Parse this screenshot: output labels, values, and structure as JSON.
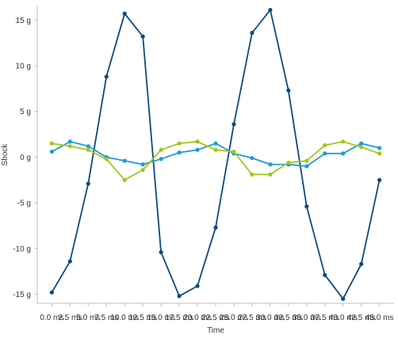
{
  "chart_data": {
    "type": "line",
    "xlabel": "Time",
    "ylabel": "Shock",
    "x": [
      0,
      2.5,
      5,
      7.5,
      10,
      12.5,
      15,
      17.5,
      20,
      22.5,
      25,
      27.5,
      30,
      32.5,
      35,
      37.5,
      40,
      42.5,
      45
    ],
    "xlim": [
      -2,
      47
    ],
    "ylim": [
      -16,
      16.5
    ],
    "x_ticks": [
      {
        "value": 0,
        "label": "0.0 ms"
      },
      {
        "value": 2.5,
        "label": "2.5 ms"
      },
      {
        "value": 5,
        "label": "5.0 ms"
      },
      {
        "value": 7.5,
        "label": "7.5 ms"
      },
      {
        "value": 10,
        "label": "10.0 ms"
      },
      {
        "value": 12.5,
        "label": "12.5 ms"
      },
      {
        "value": 15,
        "label": "15.0 ms"
      },
      {
        "value": 17.5,
        "label": "17.5 ms"
      },
      {
        "value": 20,
        "label": "20.0 ms"
      },
      {
        "value": 22.5,
        "label": "22.5 ms"
      },
      {
        "value": 25,
        "label": "25.0 ms"
      },
      {
        "value": 27.5,
        "label": "27.5 ms"
      },
      {
        "value": 30,
        "label": "30.0 ms"
      },
      {
        "value": 32.5,
        "label": "32.5 ms"
      },
      {
        "value": 35,
        "label": "35.0 ms"
      },
      {
        "value": 37.5,
        "label": "37.5 ms"
      },
      {
        "value": 40,
        "label": "40.0 ms"
      },
      {
        "value": 42.5,
        "label": "42.5 ms"
      },
      {
        "value": 45,
        "label": "45.0 ms"
      }
    ],
    "y_ticks": [
      {
        "value": 15,
        "label": "15 g"
      },
      {
        "value": 10,
        "label": "10 g"
      },
      {
        "value": 5,
        "label": "5 g"
      },
      {
        "value": 0,
        "label": "0 g"
      },
      {
        "value": -5,
        "label": "-5 g"
      },
      {
        "value": -10,
        "label": "-10 g"
      },
      {
        "value": -15,
        "label": "-15 g"
      }
    ],
    "grid": false,
    "series": [
      {
        "color": "#0b4a7d",
        "values": [
          -14.8,
          -11.4,
          -2.9,
          8.8,
          15.7,
          13.2,
          -10.4,
          -15.2,
          -14.1,
          -7.7,
          3.6,
          13.6,
          16.1,
          7.3,
          -5.4,
          -12.9,
          -15.5,
          -11.7,
          -2.5
        ]
      },
      {
        "color": "#1e9bd7",
        "values": [
          0.6,
          1.7,
          1.2,
          0.0,
          -0.4,
          -0.8,
          -0.2,
          0.5,
          0.8,
          1.5,
          0.4,
          -0.1,
          -0.8,
          -0.8,
          -1.0,
          0.4,
          0.4,
          1.5,
          1.0
        ]
      },
      {
        "color": "#a2c617",
        "values": [
          1.5,
          1.2,
          0.8,
          -0.2,
          -2.5,
          -1.4,
          0.8,
          1.5,
          1.7,
          0.8,
          0.6,
          -1.9,
          -1.9,
          -0.6,
          -0.4,
          1.3,
          1.7,
          1.1,
          0.4
        ]
      }
    ]
  }
}
